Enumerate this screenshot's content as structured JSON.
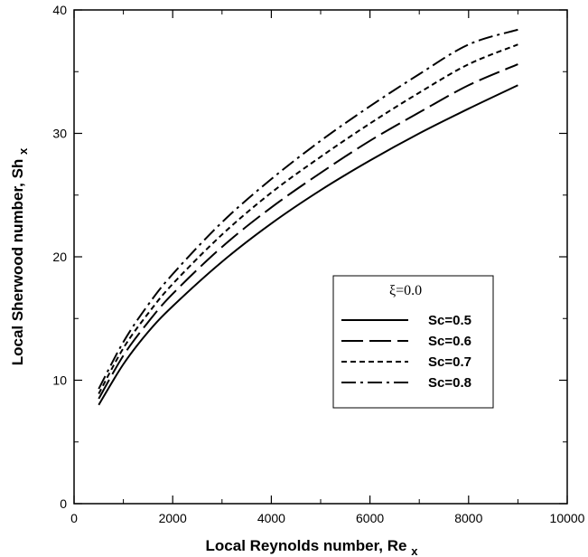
{
  "chart_data": {
    "type": "line",
    "title": "",
    "xlabel": "Local Reynolds number,",
    "xlabel_symbol": "Re",
    "xlabel_subscript": "x",
    "ylabel": "Local Sherwood number,",
    "ylabel_symbol": "Sh",
    "ylabel_subscript": "x",
    "xlim": [
      0,
      10000
    ],
    "ylim": [
      0,
      40
    ],
    "xticks": [
      "0",
      "2000",
      "4000",
      "6000",
      "8000",
      "10000"
    ],
    "yticks": [
      "0",
      "10",
      "20",
      "30",
      "40"
    ],
    "grid": false,
    "legend_position": "lower-right",
    "legend_title": "ξ=0.0",
    "x": [
      500,
      1000,
      1500,
      2000,
      3000,
      4000,
      5000,
      6000,
      7000,
      8000,
      9000
    ],
    "series": [
      {
        "name": "Sc=0.5",
        "dash": "solid",
        "values": [
          8.0,
          11.3,
          13.9,
          16.0,
          19.6,
          22.7,
          25.4,
          27.8,
          30.0,
          32.0,
          33.9
        ]
      },
      {
        "name": "Sc=0.6",
        "dash": "long-dash",
        "values": [
          8.5,
          12.0,
          14.7,
          17.0,
          20.8,
          24.0,
          26.8,
          29.4,
          31.7,
          33.9,
          35.6
        ]
      },
      {
        "name": "Sc=0.7",
        "dash": "short-dash",
        "values": [
          8.9,
          12.6,
          15.4,
          17.8,
          21.8,
          25.2,
          28.1,
          30.8,
          33.3,
          35.6,
          37.2
        ]
      },
      {
        "name": "Sc=0.8",
        "dash": "dash-dot",
        "values": [
          9.3,
          13.1,
          16.1,
          18.6,
          22.8,
          26.3,
          29.4,
          32.2,
          34.8,
          37.2,
          38.4
        ]
      }
    ]
  }
}
